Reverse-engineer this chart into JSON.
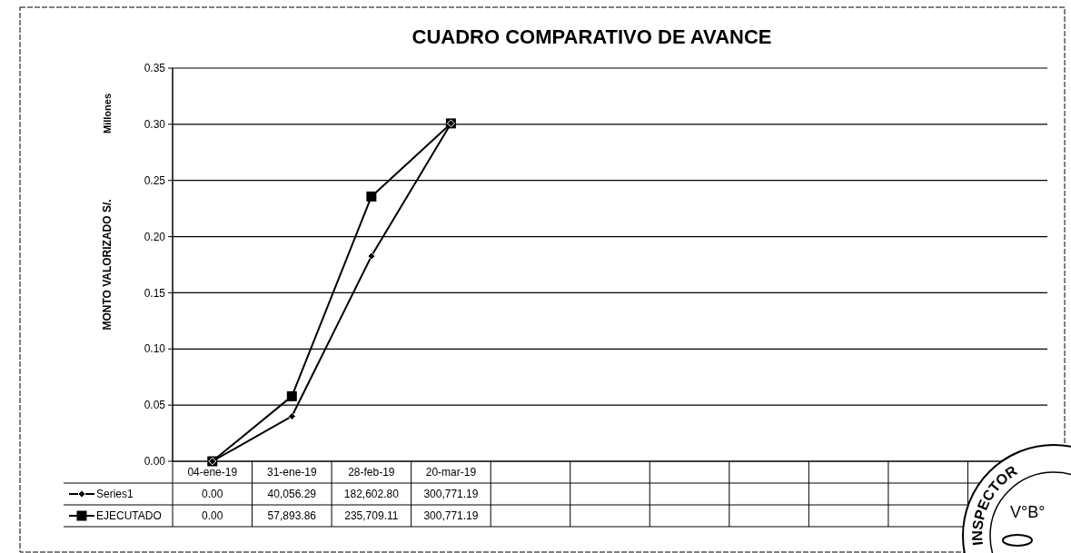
{
  "chart_data": {
    "type": "line",
    "title": "CUADRO COMPARATIVO DE AVANCE",
    "ylabel": "MONTO VALORIZADO S/.",
    "annotations": [
      "Millones",
      "INSPECTOR",
      "V°B°",
      "0.00",
      "40,056.29",
      "182,602.80",
      "300,771.19",
      "0.00",
      "57,893.86",
      "235,709.11",
      "300,771.19"
    ],
    "categories": [
      "04-ene-19",
      "31-ene-19",
      "28-feb-19",
      "20-mar-19",
      null,
      null,
      null,
      null,
      null,
      null,
      null
    ],
    "series": [
      {
        "name": "Series1",
        "color": "#000000",
        "marker": "diamond",
        "values": [
          0,
          0.04005629,
          0.1826028,
          0.30077119,
          null,
          null,
          null,
          null,
          null,
          null,
          null
        ]
      },
      {
        "name": "EJECUTADO",
        "color": "#000000",
        "marker": "square",
        "values": [
          0,
          0.05789386,
          0.23570911,
          0.30077119,
          null,
          null,
          null,
          null,
          null,
          null,
          null
        ]
      }
    ],
    "ylim": [
      0,
      0.35
    ],
    "yticks": [
      {
        "value": 0,
        "label": "0.00"
      },
      {
        "value": 0.05,
        "label": "0.05"
      },
      {
        "value": 0.1,
        "label": "0.10"
      },
      {
        "value": 0.15,
        "label": "0.15"
      },
      {
        "value": 0.2,
        "label": "0.20"
      },
      {
        "value": 0.25,
        "label": "0.25"
      },
      {
        "value": 0.3,
        "label": "0.30"
      },
      {
        "value": 0.35,
        "label": "0.35"
      }
    ],
    "grid": "y",
    "legend": "bottom left"
  }
}
